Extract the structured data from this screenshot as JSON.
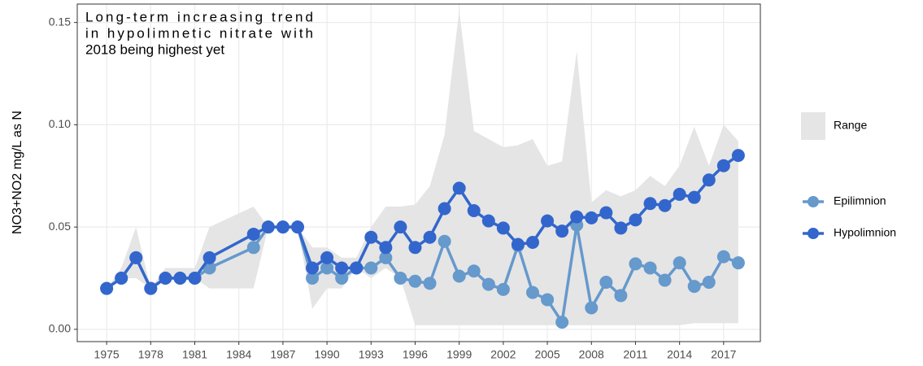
{
  "chart_data": {
    "type": "line",
    "annotation": [
      "Long-term increasing trend",
      "in hypolimnetic nitrate with",
      "2018 being highest yet"
    ],
    "y_label": "NO3+NO2  mg/L as N",
    "x": [
      1975,
      1976,
      1977,
      1978,
      1979,
      1980,
      1981,
      1982,
      1985,
      1986,
      1987,
      1988,
      1989,
      1990,
      1991,
      1992,
      1993,
      1994,
      1995,
      1996,
      1997,
      1998,
      1999,
      2000,
      2001,
      2002,
      2003,
      2004,
      2005,
      2006,
      2007,
      2008,
      2009,
      2010,
      2011,
      2012,
      2013,
      2014,
      2015,
      2016,
      2017,
      2018
    ],
    "range": {
      "name": "Range",
      "color": "#e5e5e5",
      "lower": [
        0.02,
        0.025,
        0.025,
        0.02,
        0.025,
        0.025,
        0.025,
        0.02,
        0.02,
        0.05,
        0.05,
        0.05,
        0.01,
        0.02,
        0.02,
        0.03,
        0.025,
        0.03,
        0.025,
        0.002,
        0.002,
        0.002,
        0.002,
        0.002,
        0.002,
        0.002,
        0.002,
        0.002,
        0.002,
        0.002,
        0.002,
        0.002,
        0.002,
        0.002,
        0.002,
        0.002,
        0.002,
        0.002,
        0.003,
        0.003,
        0.003,
        0.003
      ],
      "upper": [
        0.02,
        0.03,
        0.05,
        0.02,
        0.03,
        0.03,
        0.03,
        0.05,
        0.06,
        0.05,
        0.05,
        0.05,
        0.04,
        0.04,
        0.035,
        0.035,
        0.05,
        0.06,
        0.06,
        0.061,
        0.07,
        0.095,
        0.156,
        0.097,
        0.093,
        0.089,
        0.09,
        0.093,
        0.08,
        0.082,
        0.136,
        0.062,
        0.068,
        0.065,
        0.068,
        0.075,
        0.07,
        0.08,
        0.099,
        0.08,
        0.1,
        0.092
      ]
    },
    "series": [
      {
        "name": "Epilimnion",
        "color": "#6699cc",
        "values": [
          0.02,
          0.025,
          0.035,
          0.02,
          0.025,
          0.025,
          0.025,
          0.03,
          0.04,
          0.05,
          0.05,
          0.05,
          0.025,
          0.03,
          0.025,
          0.03,
          0.03,
          0.035,
          0.025,
          0.0235,
          0.0225,
          0.043,
          0.026,
          0.0285,
          0.022,
          0.0195,
          0.041,
          0.018,
          0.0145,
          0.0035,
          0.051,
          0.0105,
          0.023,
          0.0165,
          0.032,
          0.03,
          0.024,
          0.0325,
          0.021,
          0.023,
          0.0355,
          0.0325
        ]
      },
      {
        "name": "Hypolimnion",
        "color": "#3366cc",
        "values": [
          0.02,
          0.025,
          0.035,
          0.02,
          0.025,
          0.025,
          0.025,
          0.035,
          0.0465,
          0.05,
          0.05,
          0.05,
          0.03,
          0.035,
          0.03,
          0.03,
          0.045,
          0.04,
          0.05,
          0.04,
          0.045,
          0.059,
          0.069,
          0.058,
          0.053,
          0.0495,
          0.0415,
          0.0425,
          0.053,
          0.048,
          0.055,
          0.0545,
          0.057,
          0.0495,
          0.0535,
          0.0615,
          0.0605,
          0.066,
          0.0645,
          0.073,
          0.08,
          0.085
        ]
      }
    ],
    "xlim": [
      1973,
      2019.5
    ],
    "ylim": [
      -0.006,
      0.159
    ],
    "xticks": [
      1975,
      1978,
      1981,
      1984,
      1987,
      1990,
      1993,
      1996,
      1999,
      2002,
      2005,
      2008,
      2011,
      2014,
      2017
    ],
    "yticks": [
      {
        "value": 0,
        "label": "0.00"
      },
      {
        "value": 0.05,
        "label": "0.05"
      },
      {
        "value": 0.1,
        "label": "0.10"
      },
      {
        "value": 0.15,
        "label": "0.15"
      }
    ],
    "grid": true
  }
}
